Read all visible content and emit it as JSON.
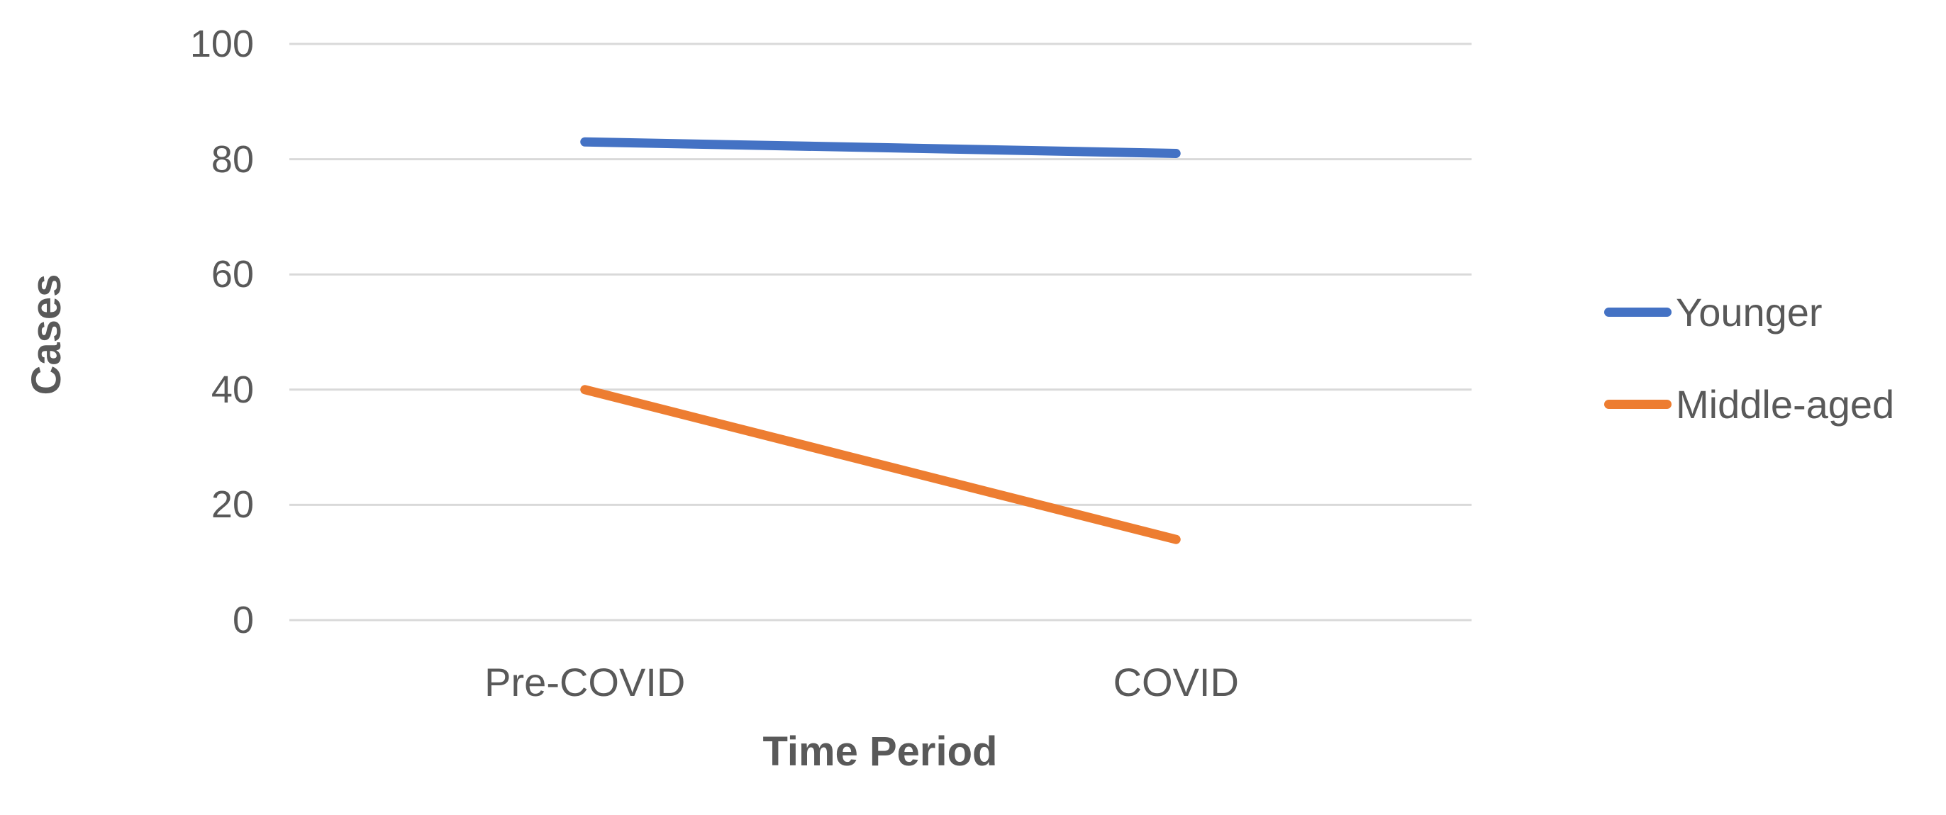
{
  "chart_data": {
    "type": "line",
    "categories": [
      "Pre-COVID",
      "COVID"
    ],
    "series": [
      {
        "name": "Younger",
        "color": "#4472C4",
        "values": [
          83,
          81
        ]
      },
      {
        "name": "Middle-aged",
        "color": "#ED7D31",
        "values": [
          40,
          14
        ]
      }
    ],
    "title": "",
    "xlabel": "Time Period",
    "ylabel": "Cases",
    "ylim": [
      0,
      100
    ],
    "yticks": [
      0,
      20,
      40,
      60,
      80,
      100
    ],
    "grid": true,
    "legend_position": "right"
  },
  "colors": {
    "grid": "#D9D9D9",
    "text": "#595959",
    "background": "#FFFFFF"
  }
}
